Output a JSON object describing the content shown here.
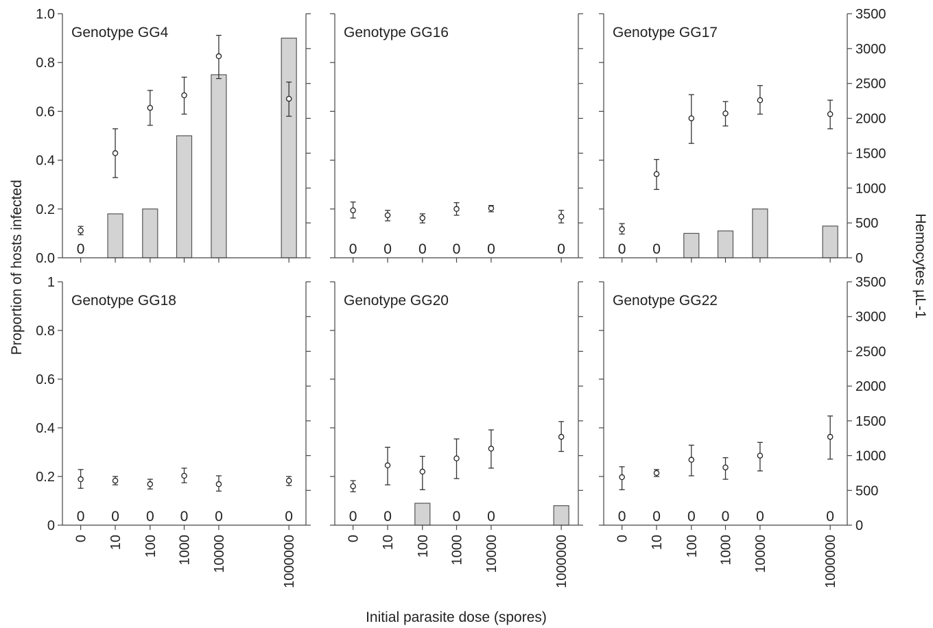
{
  "figure": {
    "ylabel_left": "Proportion of hosts infected",
    "ylabel_right": "Hemocytes µL-1",
    "xlabel": "Initial parasite dose (spores)"
  },
  "chart_data": {
    "type": "bar",
    "x_categories": [
      "0",
      "10",
      "100",
      "1000",
      "10000",
      "1000000"
    ],
    "left_axis": {
      "label": "Proportion of hosts infected",
      "ylim": [
        0,
        1
      ],
      "ticks_top_row": [
        "0.0",
        "0.2",
        "0.4",
        "0.6",
        "0.8",
        "1.0"
      ],
      "ticks_bottom_row": [
        "0",
        "0.2",
        "0.4",
        "0.6",
        "0.8",
        "1"
      ]
    },
    "right_axis": {
      "label": "Hemocytes µL-1",
      "ylim": [
        0,
        3500
      ],
      "ticks": [
        "0",
        "500",
        "1000",
        "1500",
        "2000",
        "2500",
        "3000",
        "3500"
      ]
    },
    "bar_color": "#d3d3d3",
    "zero_label": "0",
    "panels": [
      {
        "title": "Genotype GG4",
        "infected_proportion": [
          0,
          0.18,
          0.2,
          0.5,
          0.75,
          0.9
        ],
        "hemocytes": {
          "mean": [
            390,
            1500,
            2150,
            2330,
            2890,
            2280
          ],
          "lower": [
            330,
            1150,
            1900,
            2060,
            2570,
            2030
          ],
          "upper": [
            450,
            1850,
            2400,
            2590,
            3190,
            2520
          ]
        }
      },
      {
        "title": "Genotype GG16",
        "infected_proportion": [
          0,
          0,
          0,
          0,
          0,
          0
        ],
        "hemocytes": {
          "mean": [
            680,
            610,
            570,
            700,
            710,
            590
          ],
          "lower": [
            570,
            530,
            500,
            610,
            660,
            500
          ],
          "upper": [
            800,
            680,
            630,
            790,
            750,
            680
          ]
        }
      },
      {
        "title": "Genotype GG17",
        "infected_proportion": [
          0,
          0,
          0.1,
          0.11,
          0.2,
          0.13
        ],
        "hemocytes": {
          "mean": [
            410,
            1200,
            2000,
            2070,
            2260,
            2060
          ],
          "lower": [
            340,
            980,
            1640,
            1890,
            2060,
            1850
          ],
          "upper": [
            490,
            1410,
            2340,
            2240,
            2470,
            2260
          ]
        }
      },
      {
        "title": "Genotype GG18",
        "infected_proportion": [
          0,
          0,
          0,
          0,
          0,
          0
        ],
        "hemocytes": {
          "mean": [
            660,
            640,
            590,
            710,
            590,
            640
          ],
          "lower": [
            530,
            580,
            520,
            610,
            490,
            570
          ],
          "upper": [
            800,
            700,
            660,
            820,
            710,
            700
          ]
        }
      },
      {
        "title": "Genotype GG20",
        "infected_proportion": [
          0,
          0,
          0.09,
          0,
          0,
          0.08
        ],
        "hemocytes": {
          "mean": [
            560,
            860,
            770,
            960,
            1100,
            1270
          ],
          "lower": [
            480,
            580,
            510,
            670,
            820,
            1060
          ],
          "upper": [
            640,
            1120,
            990,
            1240,
            1370,
            1490
          ]
        }
      },
      {
        "title": "Genotype GG22",
        "infected_proportion": [
          0,
          0,
          0,
          0,
          0,
          0
        ],
        "hemocytes": {
          "mean": [
            690,
            750,
            940,
            830,
            1000,
            1270
          ],
          "lower": [
            510,
            700,
            710,
            660,
            780,
            950
          ],
          "upper": [
            840,
            800,
            1150,
            970,
            1190,
            1570
          ]
        }
      }
    ]
  }
}
